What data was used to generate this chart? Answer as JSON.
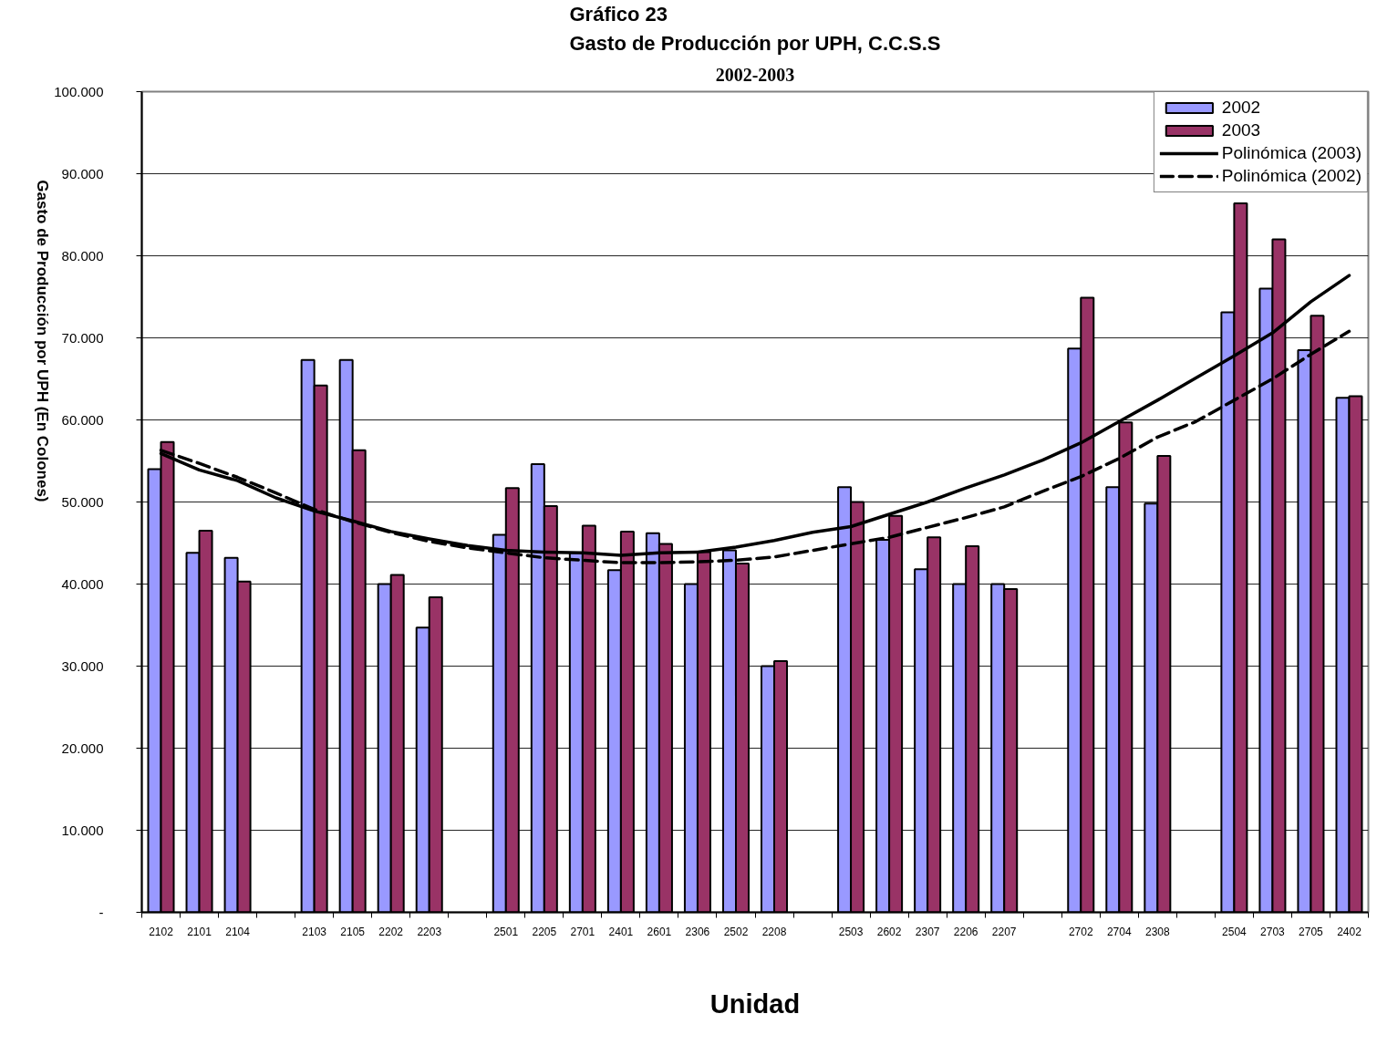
{
  "chart_data": {
    "type": "bar",
    "title": "Gráfico 23\nGasto de Producción por UPH, C.C.S.S",
    "subtitle": "2002-2003",
    "xlabel": "Unidad",
    "ylabel": "Gasto de Producción por UPH (En Colones)",
    "categories": [
      "2102",
      "2101",
      "2104",
      null,
      "2103",
      "2105",
      "2202",
      "2203",
      null,
      "2501",
      "2205",
      "2701",
      "2401",
      "2601",
      "2306",
      "2502",
      "2208",
      null,
      "2503",
      "2602",
      "2307",
      "2206",
      "2207",
      null,
      "2702",
      "2704",
      "2308",
      null,
      "2504",
      "2703",
      "2705",
      "2402"
    ],
    "series": [
      {
        "name": "2002",
        "color": "#9999ff",
        "values": [
          54000,
          43800,
          43200,
          null,
          67300,
          67300,
          40000,
          34700,
          null,
          46000,
          54600,
          43800,
          41700,
          46200,
          40000,
          44100,
          30000,
          null,
          51800,
          45400,
          41800,
          40000,
          40000,
          null,
          68700,
          51800,
          49800,
          null,
          73100,
          76000,
          68500,
          62700
        ]
      },
      {
        "name": "2003",
        "color": "#993366",
        "values": [
          57300,
          46500,
          40300,
          null,
          64200,
          56300,
          41100,
          38400,
          null,
          51700,
          49500,
          47100,
          46400,
          44900,
          43900,
          42500,
          30600,
          null,
          50000,
          48300,
          45700,
          44600,
          39400,
          null,
          74900,
          59700,
          55600,
          null,
          86400,
          82000,
          72700,
          62900
        ]
      },
      {
        "name": "Polinómica (2003)",
        "type": "line",
        "color": "#000000",
        "line_style": "solid",
        "values": [
          55900,
          53900,
          52600,
          50500,
          48900,
          47700,
          46400,
          45500,
          44700,
          44100,
          43900,
          43800,
          43500,
          43800,
          43900,
          44500,
          45300,
          46300,
          47000,
          48500,
          50000,
          51700,
          53300,
          55100,
          57200,
          59800,
          62400,
          65100,
          67800,
          70600,
          74400,
          77600
        ]
      },
      {
        "name": "Polinómica (2002)",
        "type": "line",
        "color": "#000000",
        "line_style": "dashed",
        "values": [
          56300,
          54700,
          53000,
          51100,
          49100,
          47600,
          46300,
          45200,
          44400,
          43800,
          43200,
          42900,
          42600,
          42600,
          42700,
          42900,
          43300,
          44100,
          44900,
          45700,
          46900,
          48100,
          49400,
          51300,
          53100,
          55300,
          57900,
          59800,
          62400,
          65000,
          68000,
          70800
        ]
      }
    ],
    "ylim": [
      0,
      100000
    ],
    "yticks": [
      {
        "value": 0,
        "label": "-"
      },
      {
        "value": 10000,
        "label": "10.000"
      },
      {
        "value": 20000,
        "label": "20.000"
      },
      {
        "value": 30000,
        "label": "30.000"
      },
      {
        "value": 40000,
        "label": "40.000"
      },
      {
        "value": 50000,
        "label": "50.000"
      },
      {
        "value": 60000,
        "label": "60.000"
      },
      {
        "value": 70000,
        "label": "70.000"
      },
      {
        "value": 80000,
        "label": "80.000"
      },
      {
        "value": 90000,
        "label": "90.000"
      },
      {
        "value": 100000,
        "label": "100.000"
      }
    ],
    "grid": "y",
    "legend": "top right"
  }
}
